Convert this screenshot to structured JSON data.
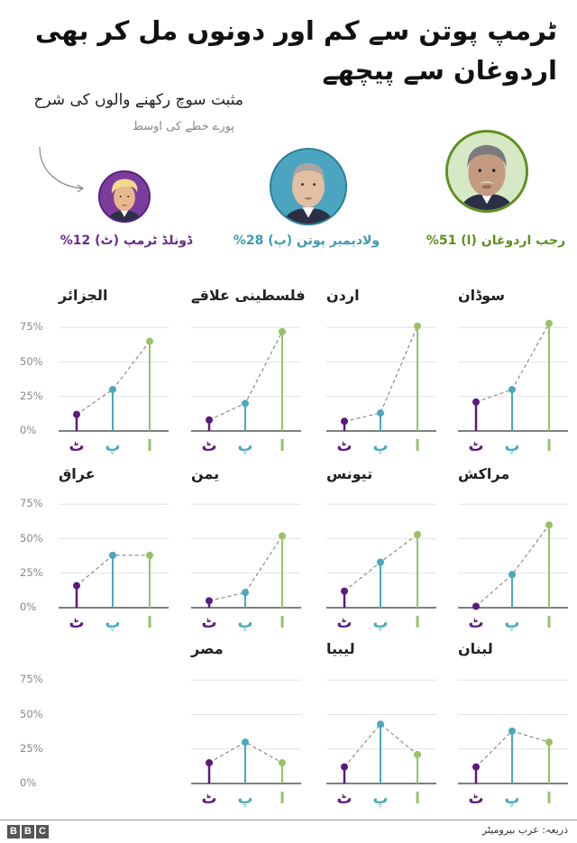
{
  "header": {
    "title": "ٹرمپ پوتن سے کم اور دونوں مل کر بھی اردوغان سے پیچھے",
    "subtitle": "مثبت سوچ رکھنے والوں کی شرح",
    "subtitle2": "پورے خطے کی اوسط"
  },
  "leaders": [
    {
      "key": "erdogan",
      "label": "رجب اردوغان (ا) 51%",
      "value": 51,
      "color": "#5f8e1e",
      "ring": "#5f8e1e",
      "bg": "#d6e8c6"
    },
    {
      "key": "putin",
      "label": "ولادیمیر پوتن (پ) 28%",
      "value": 28,
      "color": "#3b9bb3",
      "ring": "#2a7e96",
      "bg": "#4ca5c0"
    },
    {
      "key": "trump",
      "label": "ڈونلڈ ٹرمپ (ٹ)  12%",
      "value": 12,
      "color": "#6b2a8c",
      "ring": "#5b1f7a",
      "bg": "#7a3d9e"
    }
  ],
  "axis": {
    "ticks": [
      "75%",
      "50%",
      "25%",
      "0%"
    ],
    "letters": [
      "ٹ",
      "پ",
      "ا"
    ]
  },
  "colors": {
    "trump": "#5b1a7e",
    "putin": "#4aa8bf",
    "erdogan": "#97c267",
    "dash": "#777777",
    "grid": "#e3e3e3",
    "baseline": "#555555"
  },
  "chart_data": {
    "type": "line",
    "title": "ٹرمپ پوتن سے کم اور دونوں مل کر بھی اردوغان سے پیچھے",
    "subtitle": "مثبت سوچ رکھنے والوں کی شرح",
    "ylabel": "مثبت سوچ رکھنے والوں کی شرح",
    "ylim": [
      0,
      75
    ],
    "yticks": [
      "0%",
      "25%",
      "50%",
      "75%"
    ],
    "categories": [
      "ٹ (ٹرمپ)",
      "پ (پوتن)",
      "ا (اردوغان)"
    ],
    "regional_average": {
      "trump": 12,
      "putin": 28,
      "erdogan": 51
    },
    "series": [
      {
        "name": "سوڈان",
        "values": [
          21,
          30,
          78
        ]
      },
      {
        "name": "اردن",
        "values": [
          7,
          13,
          76
        ]
      },
      {
        "name": "فلسطینی علاقے",
        "values": [
          8,
          20,
          72
        ]
      },
      {
        "name": "الجزائر",
        "values": [
          12,
          30,
          65
        ]
      },
      {
        "name": "مراکش",
        "values": [
          1,
          24,
          60
        ]
      },
      {
        "name": "تیونس",
        "values": [
          12,
          33,
          53
        ]
      },
      {
        "name": "یمن",
        "values": [
          5,
          11,
          52
        ]
      },
      {
        "name": "عراق",
        "values": [
          16,
          38,
          38
        ]
      },
      {
        "name": "لبنان",
        "values": [
          12,
          38,
          30
        ]
      },
      {
        "name": "لیبیا",
        "values": [
          12,
          43,
          21
        ]
      },
      {
        "name": "مصر",
        "values": [
          15,
          30,
          15
        ]
      }
    ]
  },
  "footer": {
    "logo": [
      "B",
      "B",
      "C"
    ],
    "source": "ذریعہ: عرب بیرومیٹر"
  }
}
